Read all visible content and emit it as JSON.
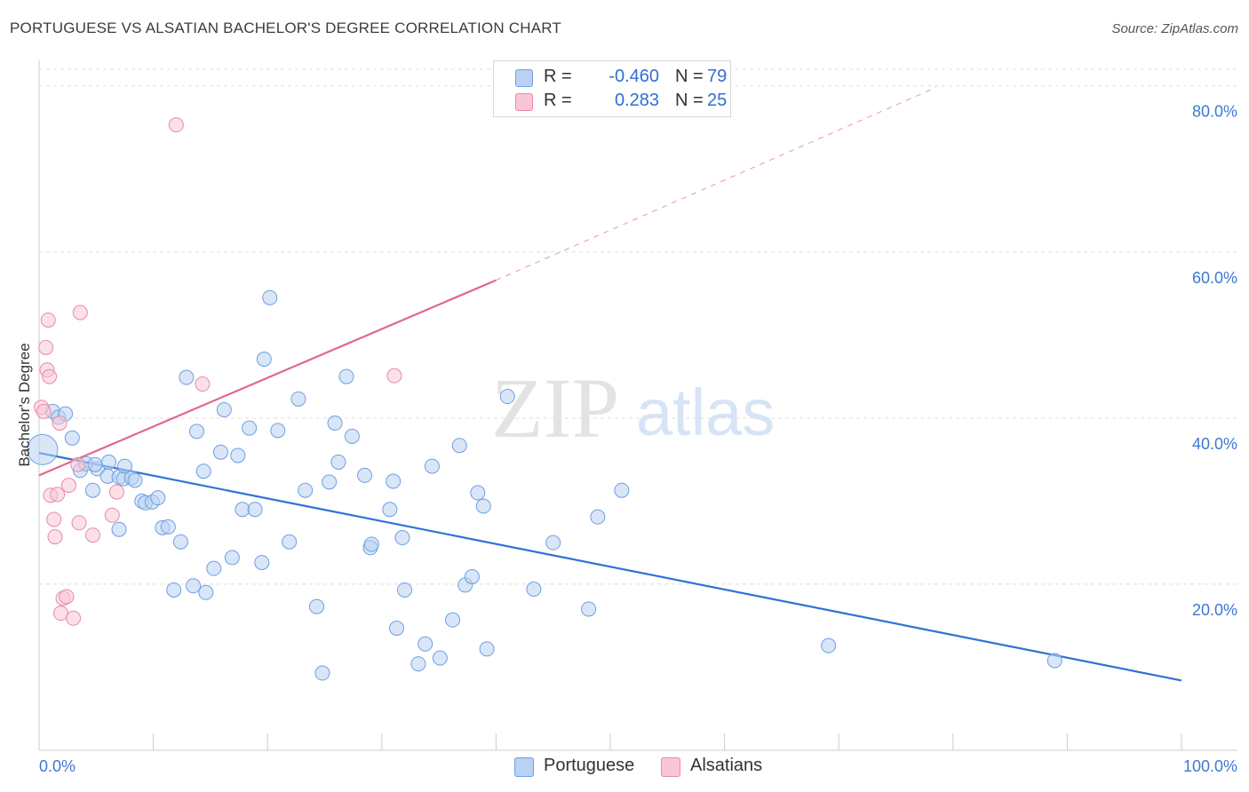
{
  "title": "PORTUGUESE VS ALSATIAN BACHELOR'S DEGREE CORRELATION CHART",
  "source": "Source: ZipAtlas.com",
  "watermark": {
    "zip": "ZIP",
    "atlas": "atlas"
  },
  "legend": {
    "rows": [
      {
        "r_label": "R =",
        "r_value": "-0.460",
        "n_label": "N =",
        "n_value": "79"
      },
      {
        "r_label": "R =",
        "r_value": "0.283",
        "n_label": "N =",
        "n_value": "25"
      }
    ]
  },
  "bottom_legend": [
    "Portuguese",
    "Alsatians"
  ],
  "colors": {
    "portuguese_fill": "#b9d1f3",
    "portuguese_stroke": "#6e9fe0",
    "portuguese_line": "#2f73d4",
    "alsatian_fill": "#f8c6d4",
    "alsatian_stroke": "#e98aa7",
    "alsatian_line": "#e0678f",
    "tick_label": "#3f77d1",
    "grid": "#dddddd"
  },
  "chart_data": {
    "type": "scatter",
    "title": "PORTUGUESE VS ALSATIAN BACHELOR'S DEGREE CORRELATION CHART",
    "xlabel": "",
    "ylabel": "Bachelor's Degree",
    "xlim": [
      0,
      100
    ],
    "ylim": [
      0,
      82
    ],
    "x_tick_labels": [
      "0.0%",
      "100.0%"
    ],
    "y_ticks": [
      20,
      40,
      60,
      80
    ],
    "y_tick_labels": [
      "20.0%",
      "40.0%",
      "60.0%",
      "80.0%"
    ],
    "grid": true,
    "legend_position": "top-center",
    "series": [
      {
        "name": "Portuguese",
        "r": -0.46,
        "n": 79,
        "trend": {
          "x": [
            0,
            100
          ],
          "y": [
            35.8,
            8.4
          ]
        },
        "points": [
          {
            "x": 0.3,
            "y": 36.2,
            "big": true
          },
          {
            "x": 1.2,
            "y": 40.8
          },
          {
            "x": 1.7,
            "y": 40.1
          },
          {
            "x": 2.3,
            "y": 40.5
          },
          {
            "x": 2.9,
            "y": 37.6
          },
          {
            "x": 3.6,
            "y": 33.7
          },
          {
            "x": 4.1,
            "y": 34.5
          },
          {
            "x": 4.7,
            "y": 31.3
          },
          {
            "x": 5.1,
            "y": 33.9
          },
          {
            "x": 4.9,
            "y": 34.4
          },
          {
            "x": 6.1,
            "y": 34.7
          },
          {
            "x": 6.0,
            "y": 33.0
          },
          {
            "x": 7.0,
            "y": 32.9
          },
          {
            "x": 7.4,
            "y": 32.7
          },
          {
            "x": 7.0,
            "y": 26.6
          },
          {
            "x": 7.5,
            "y": 34.2
          },
          {
            "x": 8.1,
            "y": 32.8
          },
          {
            "x": 8.4,
            "y": 32.5
          },
          {
            "x": 9.0,
            "y": 30.0
          },
          {
            "x": 9.3,
            "y": 29.8
          },
          {
            "x": 9.9,
            "y": 29.9
          },
          {
            "x": 10.4,
            "y": 30.4
          },
          {
            "x": 10.8,
            "y": 26.8
          },
          {
            "x": 11.3,
            "y": 26.9
          },
          {
            "x": 11.8,
            "y": 19.3
          },
          {
            "x": 12.4,
            "y": 25.1
          },
          {
            "x": 12.9,
            "y": 44.9
          },
          {
            "x": 13.5,
            "y": 19.8
          },
          {
            "x": 13.8,
            "y": 38.4
          },
          {
            "x": 14.4,
            "y": 33.6
          },
          {
            "x": 14.6,
            "y": 19.0
          },
          {
            "x": 15.3,
            "y": 21.9
          },
          {
            "x": 15.9,
            "y": 35.9
          },
          {
            "x": 16.2,
            "y": 41.0
          },
          {
            "x": 16.9,
            "y": 23.2
          },
          {
            "x": 17.4,
            "y": 35.5
          },
          {
            "x": 17.8,
            "y": 29.0
          },
          {
            "x": 18.4,
            "y": 38.8
          },
          {
            "x": 18.9,
            "y": 29.0
          },
          {
            "x": 19.5,
            "y": 22.6
          },
          {
            "x": 19.7,
            "y": 47.1
          },
          {
            "x": 20.2,
            "y": 54.5
          },
          {
            "x": 20.9,
            "y": 38.5
          },
          {
            "x": 21.9,
            "y": 25.1
          },
          {
            "x": 22.7,
            "y": 42.3
          },
          {
            "x": 23.3,
            "y": 31.3
          },
          {
            "x": 24.3,
            "y": 17.3
          },
          {
            "x": 24.8,
            "y": 9.3
          },
          {
            "x": 25.4,
            "y": 32.3
          },
          {
            "x": 25.9,
            "y": 39.4
          },
          {
            "x": 26.2,
            "y": 34.7
          },
          {
            "x": 26.9,
            "y": 45.0
          },
          {
            "x": 27.4,
            "y": 37.8
          },
          {
            "x": 28.5,
            "y": 33.1
          },
          {
            "x": 29.0,
            "y": 24.4
          },
          {
            "x": 29.1,
            "y": 24.8
          },
          {
            "x": 30.7,
            "y": 29.0
          },
          {
            "x": 31.0,
            "y": 32.4
          },
          {
            "x": 31.8,
            "y": 25.6
          },
          {
            "x": 32.0,
            "y": 19.3
          },
          {
            "x": 31.3,
            "y": 14.7
          },
          {
            "x": 33.2,
            "y": 10.4
          },
          {
            "x": 33.8,
            "y": 12.8
          },
          {
            "x": 34.4,
            "y": 34.2
          },
          {
            "x": 35.1,
            "y": 11.1
          },
          {
            "x": 36.2,
            "y": 15.7
          },
          {
            "x": 36.8,
            "y": 36.7
          },
          {
            "x": 37.3,
            "y": 19.9
          },
          {
            "x": 37.9,
            "y": 20.9
          },
          {
            "x": 38.4,
            "y": 31.0
          },
          {
            "x": 38.9,
            "y": 29.4
          },
          {
            "x": 39.2,
            "y": 12.2
          },
          {
            "x": 41.0,
            "y": 42.6
          },
          {
            "x": 43.3,
            "y": 19.4
          },
          {
            "x": 45.0,
            "y": 25.0
          },
          {
            "x": 48.1,
            "y": 17.0
          },
          {
            "x": 48.9,
            "y": 28.1
          },
          {
            "x": 51.0,
            "y": 31.3
          },
          {
            "x": 69.1,
            "y": 12.6
          },
          {
            "x": 88.9,
            "y": 10.8
          }
        ]
      },
      {
        "name": "Alsatians",
        "r": 0.283,
        "n": 25,
        "trend": {
          "x": [
            0,
            40
          ],
          "y": [
            33.1,
            56.6
          ]
        },
        "trend_extension": {
          "x": [
            40,
            78.5
          ],
          "y": [
            56.6,
            79.8
          ]
        },
        "points": [
          {
            "x": 0.2,
            "y": 41.3
          },
          {
            "x": 0.4,
            "y": 40.8
          },
          {
            "x": 0.6,
            "y": 48.5
          },
          {
            "x": 0.8,
            "y": 51.8
          },
          {
            "x": 0.7,
            "y": 45.8
          },
          {
            "x": 0.9,
            "y": 45.0
          },
          {
            "x": 1.0,
            "y": 30.7
          },
          {
            "x": 1.3,
            "y": 27.8
          },
          {
            "x": 1.4,
            "y": 25.7
          },
          {
            "x": 1.6,
            "y": 30.8
          },
          {
            "x": 1.8,
            "y": 39.4
          },
          {
            "x": 1.9,
            "y": 16.5
          },
          {
            "x": 2.1,
            "y": 18.3
          },
          {
            "x": 2.4,
            "y": 18.5
          },
          {
            "x": 2.6,
            "y": 31.9
          },
          {
            "x": 3.0,
            "y": 15.9
          },
          {
            "x": 3.4,
            "y": 34.4
          },
          {
            "x": 3.5,
            "y": 27.4
          },
          {
            "x": 3.6,
            "y": 52.7
          },
          {
            "x": 4.7,
            "y": 25.9
          },
          {
            "x": 6.4,
            "y": 28.3
          },
          {
            "x": 6.8,
            "y": 31.1
          },
          {
            "x": 12.0,
            "y": 75.3
          },
          {
            "x": 14.3,
            "y": 44.1
          },
          {
            "x": 31.1,
            "y": 45.1
          }
        ]
      }
    ]
  }
}
